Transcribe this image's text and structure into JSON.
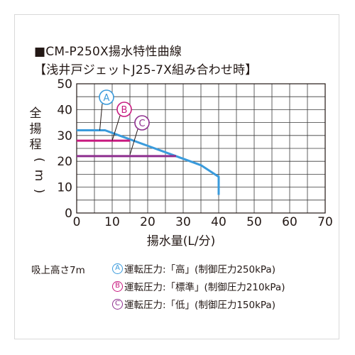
{
  "title": "■CM-P250X揚水特性曲線",
  "subtitle": "【浅井戸ジェットJ25-7X組み合わせ時】",
  "chart_data": {
    "type": "line",
    "xlabel": "揚水量(L/分)",
    "ylabel": "全揚程(m)",
    "xlim": [
      0,
      70
    ],
    "ylim": [
      0,
      50
    ],
    "x_ticks": [
      "0",
      "10",
      "20",
      "30",
      "40",
      "50",
      "60",
      "70"
    ],
    "y_ticks": [
      "0",
      "10",
      "20",
      "30",
      "40",
      "50"
    ],
    "grid": true,
    "series": [
      {
        "name": "A",
        "color": "#3a9bdc",
        "points": [
          [
            0,
            32
          ],
          [
            8,
            32
          ],
          [
            12,
            30
          ],
          [
            20,
            26
          ],
          [
            26,
            23
          ],
          [
            30,
            21
          ],
          [
            35,
            18.5
          ],
          [
            40,
            14
          ],
          [
            40,
            7
          ]
        ]
      },
      {
        "name": "B",
        "color": "#c8197f",
        "points": [
          [
            0,
            28
          ],
          [
            15,
            28
          ]
        ]
      },
      {
        "name": "C",
        "color": "#8e2f8f",
        "points": [
          [
            0,
            22
          ],
          [
            28,
            22
          ]
        ]
      }
    ]
  },
  "legend": {
    "suction": "吸上高さ7m",
    "items": [
      {
        "mark": "A",
        "text": "運転圧力:「高」(制御圧力250kPa)",
        "color": "#3a9bdc"
      },
      {
        "mark": "B",
        "text": "運転圧力:「標準」(制御圧力210kPa)",
        "color": "#c8197f"
      },
      {
        "mark": "C",
        "text": "運転圧力:「低」(制御圧力150kPa)",
        "color": "#8e2f8f"
      }
    ]
  }
}
